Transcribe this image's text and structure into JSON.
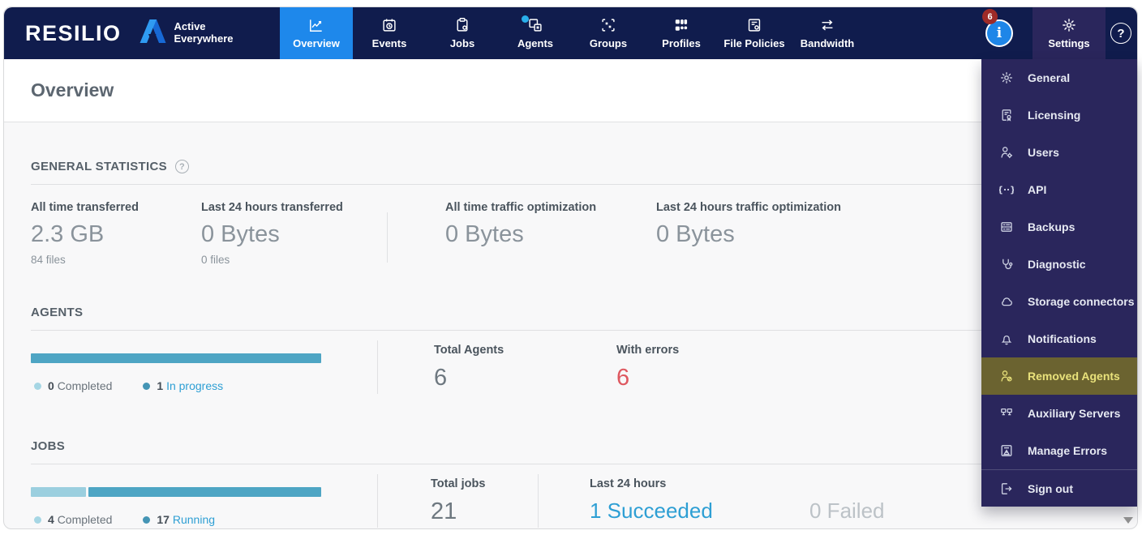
{
  "brand": {
    "name": "RESILIO",
    "product_line1": "Active",
    "product_line2": "Everywhere"
  },
  "nav": {
    "tabs": [
      {
        "label": "Overview",
        "icon": "line-chart-icon",
        "active": true
      },
      {
        "label": "Events",
        "icon": "calendar-clock-icon",
        "active": false
      },
      {
        "label": "Jobs",
        "icon": "clipboard-icon",
        "active": false
      },
      {
        "label": "Agents",
        "icon": "devices-icon",
        "active": false,
        "notification_dot": true
      },
      {
        "label": "Groups",
        "icon": "group-frame-icon",
        "active": false
      },
      {
        "label": "Profiles",
        "icon": "profiles-grid-icon",
        "active": false
      },
      {
        "label": "File Policies",
        "icon": "file-policy-icon",
        "active": false
      },
      {
        "label": "Bandwidth",
        "icon": "transfer-arrows-icon",
        "active": false
      }
    ],
    "right": {
      "notification_count": "6",
      "info_symbol": "i",
      "settings_label": "Settings",
      "help_symbol": "?"
    }
  },
  "page": {
    "title": "Overview"
  },
  "general_statistics": {
    "title": "GENERAL STATISTICS",
    "help_symbol": "?",
    "stats": [
      {
        "label": "All time transferred",
        "value": "2.3 GB",
        "sub": "84 files"
      },
      {
        "label": "Last 24 hours transferred",
        "value": "0 Bytes",
        "sub": "0 files"
      },
      {
        "label": "All time traffic optimization",
        "value": "0 Bytes",
        "sub": ""
      },
      {
        "label": "Last 24 hours traffic optimization",
        "value": "0 Bytes",
        "sub": ""
      }
    ]
  },
  "agents_section": {
    "title": "AGENTS",
    "progress": {
      "completed": 0,
      "in_progress": 1
    },
    "legend": [
      {
        "count": "0",
        "label": "Completed"
      },
      {
        "count": "1",
        "label": "In progress"
      }
    ],
    "total_label": "Total Agents",
    "total_value": "6",
    "errors_label": "With errors",
    "errors_value": "6"
  },
  "jobs_section": {
    "title": "JOBS",
    "progress": {
      "completed": 4,
      "running": 17
    },
    "legend": [
      {
        "count": "4",
        "label": "Completed"
      },
      {
        "count": "17",
        "label": "Running"
      }
    ],
    "total_label": "Total jobs",
    "total_value": "21",
    "last24_label": "Last 24 hours",
    "succeeded": "1 Succeeded",
    "failed": "0 Failed"
  },
  "settings_menu": {
    "items": [
      {
        "label": "General",
        "icon": "gear-icon",
        "active": false
      },
      {
        "label": "Licensing",
        "icon": "license-doc-icon",
        "active": false
      },
      {
        "label": "Users",
        "icon": "user-gear-icon",
        "active": false
      },
      {
        "label": "API",
        "icon": "code-braces-icon",
        "active": false
      },
      {
        "label": "Backups",
        "icon": "server-stack-icon",
        "active": false
      },
      {
        "label": "Diagnostic",
        "icon": "stethoscope-icon",
        "active": false
      },
      {
        "label": "Storage connectors",
        "icon": "cloud-icon",
        "active": false
      },
      {
        "label": "Notifications",
        "icon": "bell-icon",
        "active": false
      },
      {
        "label": "Removed Agents",
        "icon": "user-removed-icon",
        "active": true
      },
      {
        "label": "Auxiliary Servers",
        "icon": "network-nodes-icon",
        "active": false
      },
      {
        "label": "Manage Errors",
        "icon": "doc-warning-icon",
        "active": false
      },
      {
        "label": "Sign out",
        "icon": "sign-out-icon",
        "active": false,
        "separated": true
      }
    ]
  },
  "colors": {
    "navbar_bg": "#101c4d",
    "active_tab_blue": "#1e88eb",
    "dropdown_bg": "#2a265c",
    "menu_active_bg": "#6b6330",
    "menu_active_text": "#e9e27b",
    "badge_red": "#9e2b28",
    "error_red": "#de5860",
    "bar_teal": "#4ea5c4",
    "bar_light_blue": "#9bcfdf",
    "link_blue": "#2e9fd4",
    "notification_dot_cyan": "#29aeea"
  }
}
